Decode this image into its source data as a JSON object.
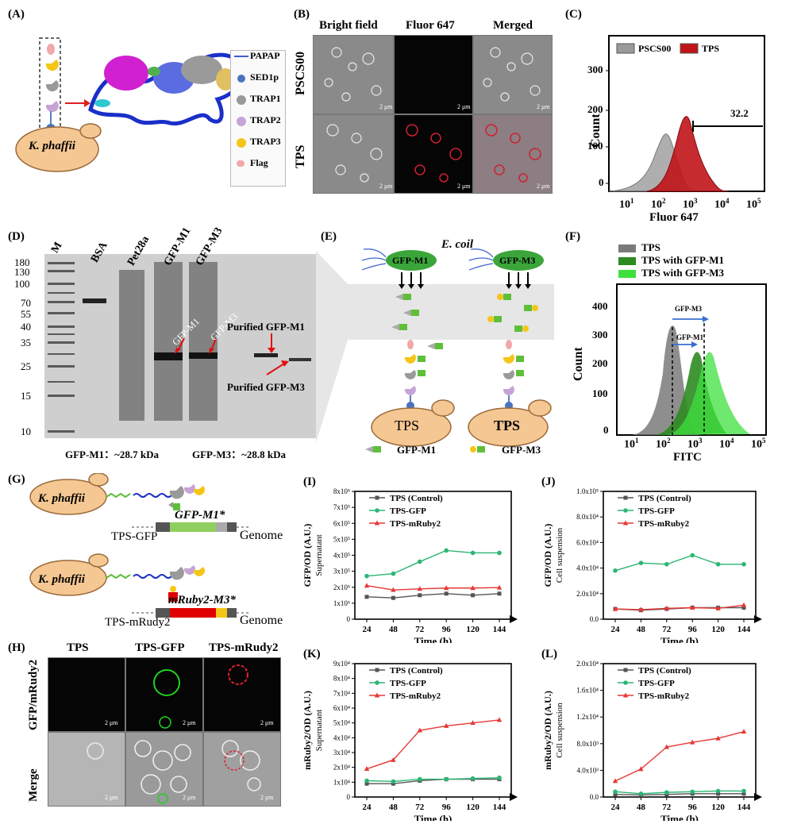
{
  "panels": {
    "A": {
      "label": "(A)",
      "cell": "K. phaffii",
      "legend": [
        "PAPAP",
        "SED1p",
        "TRAP1",
        "TRAP2",
        "TRAP3",
        "Flag"
      ]
    },
    "B": {
      "label": "(B)",
      "cols": [
        "Bright field",
        "Fluor 647",
        "Merged"
      ],
      "rows": [
        "PSCS00",
        "TPS"
      ],
      "scale": "2 μm"
    },
    "C": {
      "label": "(C)",
      "legend": [
        "PSCS00",
        "TPS"
      ],
      "ylabel": "Count",
      "xlabel": "Fluor 647",
      "gate": "32.2",
      "yticks": [
        "0",
        "100",
        "200",
        "300"
      ],
      "xtick_base": "10",
      "xtick_exp": [
        "1",
        "2",
        "3",
        "4",
        "5"
      ]
    },
    "D": {
      "label": "(D)",
      "lanes": [
        "M",
        "BSA",
        "Pet28a",
        "GFP-M1",
        "GFP-M3"
      ],
      "markers": [
        "180",
        "130",
        "100",
        "70",
        "55",
        "40",
        "35",
        "25",
        "15",
        "10"
      ],
      "band_labels": [
        "GFP-M1",
        "GFP-M3"
      ],
      "purified": [
        "Purified GFP-M1",
        "Purified GFP-M3"
      ],
      "foot": [
        "GFP-M1：~28.7 kDa",
        "GFP-M3：~28.8 kDa"
      ]
    },
    "E": {
      "label": "(E)",
      "title": "E. coil",
      "bact": [
        "GFP-M1",
        "GFP-M3"
      ],
      "cells": [
        "TPS",
        "TPS"
      ],
      "legend": [
        "GFP-M1",
        "GFP-M3"
      ]
    },
    "F": {
      "label": "(F)",
      "legend": [
        "TPS",
        "TPS with GFP-M1",
        "TPS with GFP-M3"
      ],
      "ylabel": "Count",
      "xlabel": "FITC",
      "gates": [
        "GFP-M3",
        "GFP-M1"
      ],
      "yticks": [
        "0",
        "100",
        "200",
        "300",
        "400"
      ],
      "xtick_base": "10",
      "xtick_exp": [
        "1",
        "2",
        "3",
        "4",
        "5"
      ]
    },
    "G": {
      "label": "(G)",
      "cell": "K. phaffii",
      "gene1": "GFP-M1*",
      "gene2": "mRuby2-M3*",
      "name1": "TPS-GFP",
      "name2": "TPS-mRudy2",
      "genome": "Genome"
    },
    "H": {
      "label": "(H)",
      "cols": [
        "TPS",
        "TPS-GFP",
        "TPS-mRudy2"
      ],
      "rows": [
        "GFP/mRudy2",
        "Merge"
      ],
      "scale": "2 μm"
    }
  },
  "chart_data": [
    {
      "panel": "(I)",
      "type": "line",
      "x": [
        24,
        48,
        72,
        96,
        120,
        144
      ],
      "xlabel": "Time (h)",
      "ylabel": "GFP/OD (A.U.)",
      "ylabel2": "Supernatant",
      "ylim": [
        0,
        800000
      ],
      "yticks": [
        "0",
        "1x10⁵",
        "2x10⁵",
        "3x10⁵",
        "4x10⁵",
        "5x10⁵",
        "6x10⁵",
        "7x10⁵",
        "8x10⁵"
      ],
      "series": [
        {
          "name": "TPS (Control)",
          "color": "#555555",
          "values": [
            140000,
            133000,
            150000,
            160000,
            150000,
            160000
          ]
        },
        {
          "name": "TPS-GFP",
          "color": "#2bb673",
          "values": [
            270000,
            285000,
            360000,
            430000,
            415000,
            415000
          ]
        },
        {
          "name": "TPS-mRuby2",
          "color": "#e53935",
          "values": [
            210000,
            183000,
            190000,
            195000,
            195000,
            198000
          ]
        }
      ]
    },
    {
      "panel": "(J)",
      "type": "line",
      "x": [
        24,
        48,
        72,
        96,
        120,
        144
      ],
      "xlabel": "Time (h)",
      "ylabel": "GFP/OD (A.U.)",
      "ylabel2": "Cell suspension",
      "ylim": [
        0,
        100000
      ],
      "yticks": [
        "0.0",
        "2.0x10⁴",
        "4.0x10⁴",
        "6.0x10⁴",
        "8.0x10⁴",
        "1.0x10⁵"
      ],
      "series": [
        {
          "name": "TPS (Control)",
          "color": "#555555",
          "values": [
            8000,
            7000,
            8000,
            9000,
            9000,
            9000
          ]
        },
        {
          "name": "TPS-GFP",
          "color": "#2bb673",
          "values": [
            38000,
            44000,
            43000,
            50000,
            43000,
            43000
          ]
        },
        {
          "name": "TPS-mRuby2",
          "color": "#e53935",
          "values": [
            8000,
            7500,
            8500,
            9000,
            8500,
            11000
          ]
        }
      ]
    },
    {
      "panel": "(K)",
      "type": "line",
      "x": [
        24,
        48,
        72,
        96,
        120,
        144
      ],
      "xlabel": "Time (h)",
      "ylabel": "mRuby2/OD (A.U.)",
      "ylabel2": "Supernatant",
      "ylim": [
        0,
        90000
      ],
      "yticks": [
        "0",
        "1x10⁴",
        "2x10⁴",
        "3x10⁴",
        "4x10⁴",
        "5x10⁴",
        "6x10⁴",
        "7x10⁴",
        "8x10⁴",
        "9x10⁴"
      ],
      "series": [
        {
          "name": "TPS (Control)",
          "color": "#555555",
          "values": [
            9000,
            9000,
            11000,
            12000,
            12000,
            12000
          ]
        },
        {
          "name": "TPS-GFP",
          "color": "#2bb673",
          "values": [
            11000,
            10500,
            12000,
            12000,
            12500,
            13000
          ]
        },
        {
          "name": "TPS-mRuby2",
          "color": "#e53935",
          "values": [
            19000,
            25000,
            45000,
            48000,
            50000,
            52000
          ]
        }
      ]
    },
    {
      "panel": "(L)",
      "type": "line",
      "x": [
        24,
        48,
        72,
        96,
        120,
        144
      ],
      "xlabel": "Time (h)",
      "ylabel": "mRuby2/OD (A.U.)",
      "ylabel2": "Cell suspension",
      "ylim": [
        0,
        20000
      ],
      "yticks": [
        "0.0",
        "4.0x10³",
        "8.0x10³",
        "1.2x10⁴",
        "1.6x10⁴",
        "2.0x10⁴"
      ],
      "series": [
        {
          "name": "TPS (Control)",
          "color": "#555555",
          "values": [
            400,
            300,
            400,
            500,
            500,
            500
          ]
        },
        {
          "name": "TPS-GFP",
          "color": "#2bb673",
          "values": [
            800,
            500,
            700,
            800,
            900,
            900
          ]
        },
        {
          "name": "TPS-mRuby2",
          "color": "#e53935",
          "values": [
            2400,
            4200,
            7500,
            8200,
            8800,
            9800
          ]
        }
      ]
    }
  ]
}
